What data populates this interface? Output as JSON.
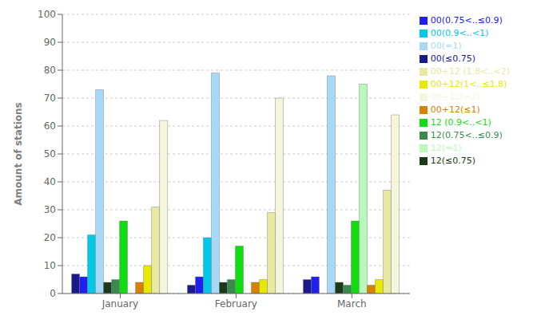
{
  "chart_data": {
    "type": "bar",
    "ylabel": "Amount of stations",
    "categories": [
      "January",
      "February",
      "March"
    ],
    "series": [
      {
        "name": "00(≤0.75)",
        "color": "#1A1A8C",
        "values": [
          7,
          3,
          5
        ]
      },
      {
        "name": "00(0.75<..≤0.9)",
        "color": "#2020EE",
        "values": [
          6,
          6,
          6
        ]
      },
      {
        "name": "00(0.9<..<1)",
        "color": "#00C8E8",
        "values": [
          21,
          20,
          0
        ]
      },
      {
        "name": "00(=1)",
        "color": "#A8D8F8",
        "values": [
          73,
          79,
          78
        ]
      },
      {
        "name": "12(≤0.75)",
        "color": "#1A3A1A",
        "values": [
          4,
          4,
          4
        ]
      },
      {
        "name": "12(0.75<..≤0.9)",
        "color": "#3A8A50",
        "values": [
          5,
          5,
          3
        ]
      },
      {
        "name": "12 (0.9<..<1)",
        "color": "#10DD10",
        "values": [
          26,
          17,
          26
        ]
      },
      {
        "name": "12(=1)",
        "color": "#B8F8B8",
        "values": [
          0,
          0,
          75
        ]
      },
      {
        "name": "00+12(≤1)",
        "color": "#D88000",
        "values": [
          4,
          4,
          3
        ]
      },
      {
        "name": "00+12(1<..≤1.8)",
        "color": "#E8E800",
        "values": [
          10,
          5,
          5
        ]
      },
      {
        "name": "00+12 (1.8<..<2)",
        "color": "#E8E8A0",
        "values": [
          31,
          29,
          37
        ]
      },
      {
        "name": "00+12(=2)",
        "color": "#F5F5DC",
        "values": [
          62,
          70,
          64
        ]
      }
    ],
    "ylim": [
      0,
      100
    ],
    "yticks": [
      0,
      10,
      20,
      30,
      40,
      50,
      60,
      70,
      80,
      90,
      100
    ],
    "grid": true,
    "legend": "upper right"
  }
}
